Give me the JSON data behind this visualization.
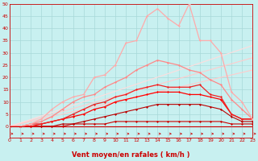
{
  "title": "",
  "xlabel": "Vent moyen/en rafales ( km/h )",
  "bg_color": "#c8f0f0",
  "grid_color": "#a8d8d8",
  "x_ticks": [
    0,
    1,
    2,
    3,
    4,
    5,
    6,
    7,
    8,
    9,
    10,
    11,
    12,
    13,
    14,
    15,
    16,
    17,
    18,
    19,
    20,
    21,
    22,
    23
  ],
  "y_ticks": [
    0,
    5,
    10,
    15,
    20,
    25,
    30,
    35,
    40,
    45,
    50
  ],
  "xlim": [
    0,
    23
  ],
  "ylim": [
    0,
    50
  ],
  "series": [
    {
      "x": [
        0,
        1,
        2,
        3,
        4,
        5,
        6,
        7,
        8,
        9,
        10,
        11,
        12,
        13,
        14,
        15,
        16,
        17,
        18,
        19,
        20,
        21,
        22,
        23
      ],
      "y": [
        0,
        0,
        0,
        0,
        0,
        0,
        1,
        1,
        1,
        1,
        2,
        2,
        2,
        2,
        2,
        2,
        2,
        2,
        2,
        2,
        2,
        1,
        1,
        1
      ],
      "color": "#cc0000",
      "lw": 0.8,
      "marker": "D",
      "ms": 1.5
    },
    {
      "x": [
        0,
        1,
        2,
        3,
        4,
        5,
        6,
        7,
        8,
        9,
        10,
        11,
        12,
        13,
        14,
        15,
        16,
        17,
        18,
        19,
        20,
        21,
        22,
        23
      ],
      "y": [
        0,
        0,
        0,
        0,
        0,
        1,
        1,
        2,
        3,
        4,
        5,
        6,
        7,
        8,
        9,
        9,
        9,
        9,
        9,
        8,
        7,
        4,
        2,
        2
      ],
      "color": "#bb0000",
      "lw": 0.8,
      "marker": "D",
      "ms": 1.5
    },
    {
      "x": [
        0,
        1,
        2,
        3,
        4,
        5,
        6,
        7,
        8,
        9,
        10,
        11,
        12,
        13,
        14,
        15,
        16,
        17,
        18,
        19,
        20,
        21,
        22,
        23
      ],
      "y": [
        0,
        0,
        0,
        1,
        2,
        3,
        4,
        5,
        7,
        8,
        10,
        11,
        12,
        13,
        14,
        14,
        14,
        13,
        13,
        12,
        11,
        5,
        3,
        3
      ],
      "color": "#ff0000",
      "lw": 0.9,
      "marker": "D",
      "ms": 1.5
    },
    {
      "x": [
        0,
        1,
        2,
        3,
        4,
        5,
        6,
        7,
        8,
        9,
        10,
        11,
        12,
        13,
        14,
        15,
        16,
        17,
        18,
        19,
        20,
        21,
        22,
        23
      ],
      "y": [
        0,
        0,
        1,
        1,
        2,
        3,
        5,
        7,
        9,
        10,
        12,
        13,
        15,
        16,
        17,
        16,
        16,
        16,
        17,
        13,
        12,
        5,
        3,
        3
      ],
      "color": "#ee2222",
      "lw": 0.9,
      "marker": "D",
      "ms": 1.5
    },
    {
      "x": [
        0,
        1,
        2,
        3,
        4,
        5,
        6,
        7,
        8,
        9,
        10,
        11,
        12,
        13,
        14,
        15,
        16,
        17,
        18,
        19,
        20,
        21,
        22,
        23
      ],
      "y": [
        0,
        0,
        1,
        2,
        4,
        7,
        10,
        12,
        13,
        16,
        18,
        20,
        23,
        25,
        27,
        26,
        25,
        23,
        22,
        19,
        17,
        11,
        7,
        3
      ],
      "color": "#ff8888",
      "lw": 0.9,
      "marker": "D",
      "ms": 1.5
    },
    {
      "x": [
        0,
        1,
        2,
        3,
        4,
        5,
        6,
        7,
        8,
        9,
        10,
        11,
        12,
        13,
        14,
        15,
        16,
        17,
        18,
        19,
        20,
        21,
        22,
        23
      ],
      "y": [
        0,
        0,
        1,
        3,
        7,
        10,
        12,
        13,
        20,
        21,
        25,
        34,
        35,
        45,
        48,
        44,
        41,
        50,
        35,
        35,
        30,
        14,
        10,
        3
      ],
      "color": "#ffaaaa",
      "lw": 0.9,
      "marker": "D",
      "ms": 1.5
    },
    {
      "x": [
        0,
        23
      ],
      "y": [
        0,
        23
      ],
      "color": "#ffcccc",
      "lw": 0.8,
      "marker": null,
      "ms": 0
    },
    {
      "x": [
        0,
        23
      ],
      "y": [
        0,
        28
      ],
      "color": "#ffcccc",
      "lw": 0.8,
      "marker": null,
      "ms": 0
    },
    {
      "x": [
        0,
        23
      ],
      "y": [
        0,
        33
      ],
      "color": "#ffdddd",
      "lw": 0.8,
      "marker": null,
      "ms": 0
    }
  ],
  "arrow_color": "#cc0000",
  "xlabel_color": "#cc0000",
  "xlabel_fontsize": 6,
  "tick_fontsize": 4.5,
  "tick_color": "#cc0000",
  "axis_color": "#cc0000",
  "spine_color": "#cc0000"
}
